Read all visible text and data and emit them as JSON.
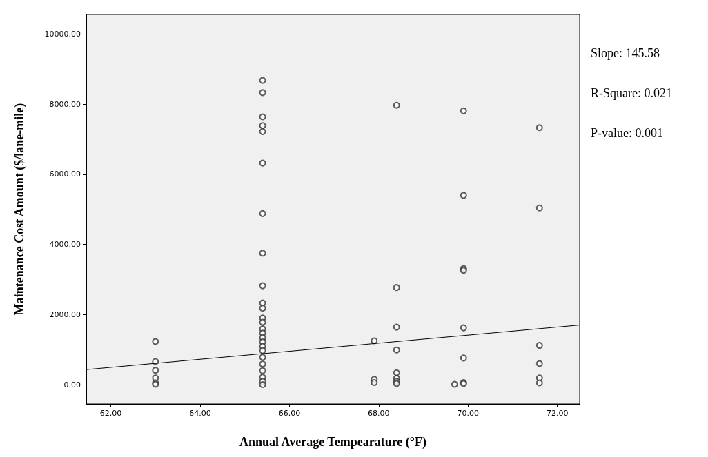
{
  "chart_data": {
    "type": "scatter",
    "xlabel": "Annual Average Tempearature (°F)",
    "ylabel": "Maintenance Cost Amount ($/lane-mile)",
    "annotations": [
      "Slope: 145.58",
      "R-Square: 0.021",
      "P-value: 0.001"
    ],
    "xlim": [
      61.45,
      72.5
    ],
    "ylim": [
      -550,
      10560
    ],
    "xticks": [
      {
        "value": 62,
        "label": "62.00"
      },
      {
        "value": 64,
        "label": "64.00"
      },
      {
        "value": 66,
        "label": "66.00"
      },
      {
        "value": 68,
        "label": "68.00"
      },
      {
        "value": 70,
        "label": "70.00"
      },
      {
        "value": 72,
        "label": "72.00"
      }
    ],
    "yticks": [
      {
        "value": 0,
        "label": "0.00"
      },
      {
        "value": 2000,
        "label": "2000.00"
      },
      {
        "value": 4000,
        "label": "4000.00"
      },
      {
        "value": 6000,
        "label": "6000.00"
      },
      {
        "value": 8000,
        "label": "8000.00"
      },
      {
        "value": 10000,
        "label": "10000.00"
      }
    ],
    "grid": false,
    "marker": "circle",
    "series": [
      {
        "color": "#333333",
        "x": [
          63,
          63,
          63,
          63,
          63,
          63,
          65.4,
          65.4,
          65.4,
          65.4,
          65.4,
          65.4,
          65.4,
          65.4,
          65.4,
          65.4,
          65.4,
          65.4,
          65.4,
          65.4,
          65.4,
          65.4,
          65.4,
          65.4,
          65.4,
          65.4,
          65.4,
          65.4,
          65.4,
          65.4,
          65.4,
          67.9,
          67.9,
          67.9,
          68.4,
          68.4,
          68.4,
          68.4,
          68.4,
          68.4,
          68.4,
          68.4,
          69.7,
          69.9,
          69.9,
          69.9,
          69.9,
          69.9,
          69.9,
          69.9,
          69.9,
          71.6,
          71.6,
          71.6,
          71.6,
          71.6,
          71.6
        ],
        "values": [
          1230,
          660,
          410,
          190,
          50,
          10,
          8680,
          8330,
          7640,
          7390,
          7220,
          6320,
          4880,
          3750,
          2820,
          2330,
          2180,
          1900,
          1780,
          1590,
          1470,
          1340,
          1220,
          1090,
          970,
          780,
          590,
          400,
          210,
          90,
          0,
          1250,
          150,
          60,
          7970,
          2770,
          1640,
          990,
          340,
          180,
          90,
          30,
          10,
          7810,
          5400,
          3310,
          3260,
          1620,
          760,
          60,
          30,
          7330,
          5040,
          1120,
          600,
          190,
          50
        ]
      },
      {
        "type": "line",
        "color": "#000000",
        "marker": "none",
        "x": [
          61.45,
          72.5
        ],
        "values": [
          430,
          1700
        ]
      }
    ]
  }
}
